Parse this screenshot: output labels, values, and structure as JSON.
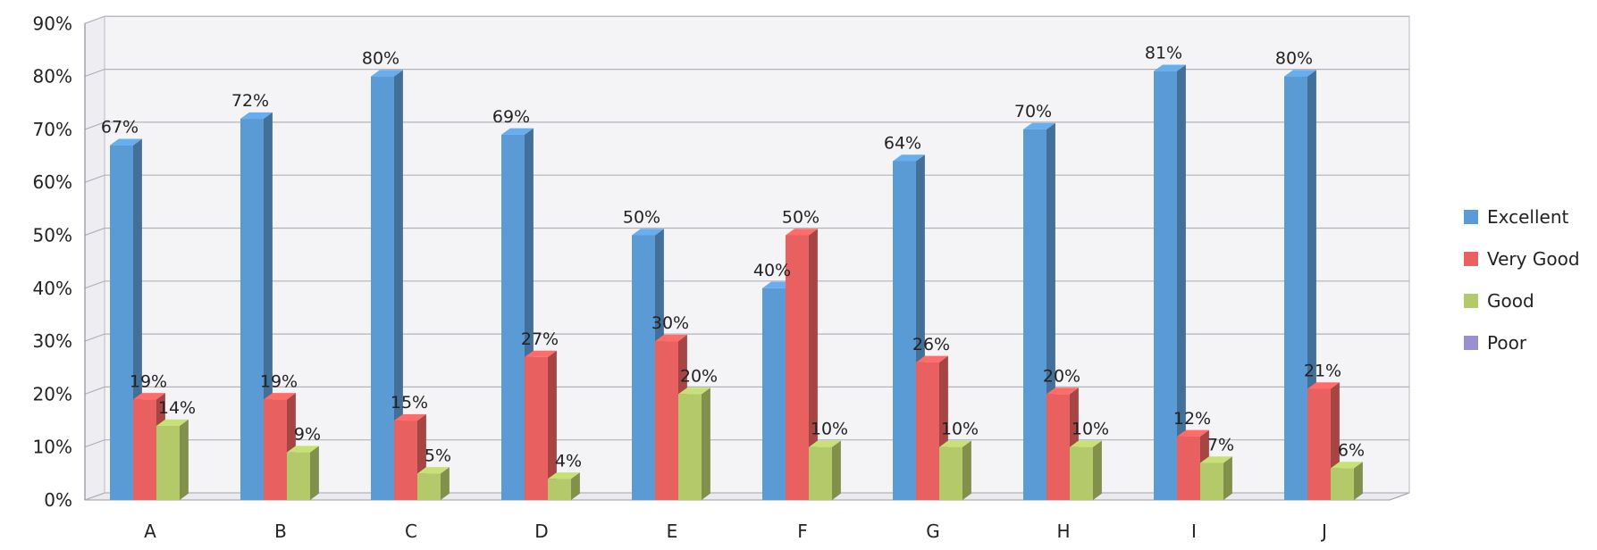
{
  "chart_data": {
    "type": "bar",
    "title": "",
    "xlabel": "",
    "ylabel": "",
    "categories": [
      "A",
      "B",
      "C",
      "D",
      "E",
      "F",
      "G",
      "H",
      "I",
      "J"
    ],
    "ylim": [
      0,
      90
    ],
    "yticks": [
      0,
      10,
      20,
      30,
      40,
      50,
      60,
      70,
      80,
      90
    ],
    "ytick_labels": [
      "0%",
      "10%",
      "20%",
      "30%",
      "40%",
      "50%",
      "60%",
      "70%",
      "80%",
      "90%"
    ],
    "unit_suffix": "%",
    "grid": true,
    "legend_position": "right",
    "series": [
      {
        "name": "Excellent",
        "color": "#5b9bd5",
        "values": [
          67,
          72,
          80,
          69,
          50,
          40,
          64,
          70,
          81,
          80
        ],
        "labels": [
          "67%",
          "72%",
          "80%",
          "69%",
          "50%",
          "40%",
          "64%",
          "70%",
          "81%",
          "80%"
        ]
      },
      {
        "name": "Very Good",
        "color": "#e8605f",
        "values": [
          19,
          19,
          15,
          27,
          30,
          50,
          26,
          20,
          12,
          21
        ],
        "labels": [
          "19%",
          "19%",
          "15%",
          "27%",
          "30%",
          "50%",
          "26%",
          "20%",
          "12%",
          "21%"
        ]
      },
      {
        "name": "Good",
        "color": "#b3c96a",
        "values": [
          14,
          9,
          5,
          4,
          20,
          10,
          10,
          10,
          7,
          6
        ],
        "labels": [
          "14%",
          "9%",
          "5%",
          "4%",
          "20%",
          "10%",
          "10%",
          "10%",
          "7%",
          "6%"
        ]
      },
      {
        "name": "Poor",
        "color": "#9b8fd0",
        "values": [
          0,
          0,
          0,
          0,
          0,
          0,
          0,
          0,
          0,
          0
        ],
        "labels": []
      }
    ]
  }
}
